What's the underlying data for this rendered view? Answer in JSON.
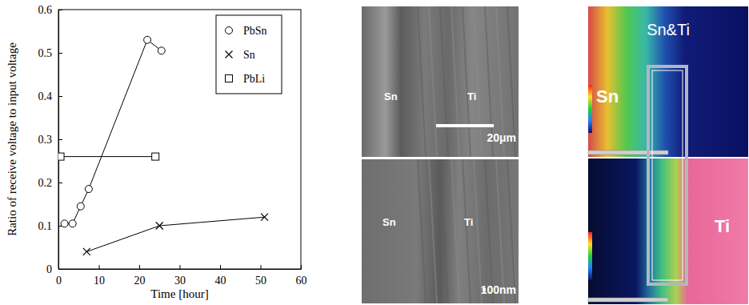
{
  "chart_data": {
    "type": "line",
    "xlabel": "Time [hour]",
    "ylabel": "Ratio of receive voltage to input voltage",
    "xlim": [
      0,
      60
    ],
    "xticks": [
      0,
      10,
      20,
      30,
      40,
      50,
      60
    ],
    "ylim": [
      0,
      0.6
    ],
    "yticks": [
      0,
      0.1,
      0.2,
      0.3,
      0.4,
      0.5,
      0.6
    ],
    "legend": "upper right",
    "series": [
      {
        "name": "PbSn",
        "color": "#000000",
        "marker": "circle",
        "line_style": "solid",
        "x": [
          1.5,
          3.5,
          5.5,
          7.5,
          22,
          25.5
        ],
        "values": [
          0.105,
          0.105,
          0.145,
          0.185,
          0.53,
          0.505
        ]
      },
      {
        "name": "Sn",
        "color": "#000000",
        "marker": "x",
        "line_style": "solid",
        "x": [
          7,
          25,
          51
        ],
        "values": [
          0.04,
          0.1,
          0.12
        ]
      },
      {
        "name": "PbLi",
        "color": "#000000",
        "marker": "square",
        "line_style": "solid",
        "x": [
          0.5,
          24
        ],
        "values": [
          0.26,
          0.26
        ]
      }
    ]
  },
  "sem": {
    "panels": [
      {
        "labels": [
          "Sn",
          "Ti"
        ],
        "scale_bar": "20μm"
      },
      {
        "labels": [
          "Sn",
          "Ti"
        ],
        "scale_bar": "100nm"
      }
    ]
  },
  "edx": {
    "title": "Sn&Ti",
    "maps": [
      {
        "label": "Sn"
      },
      {
        "label": "Ti"
      }
    ]
  }
}
